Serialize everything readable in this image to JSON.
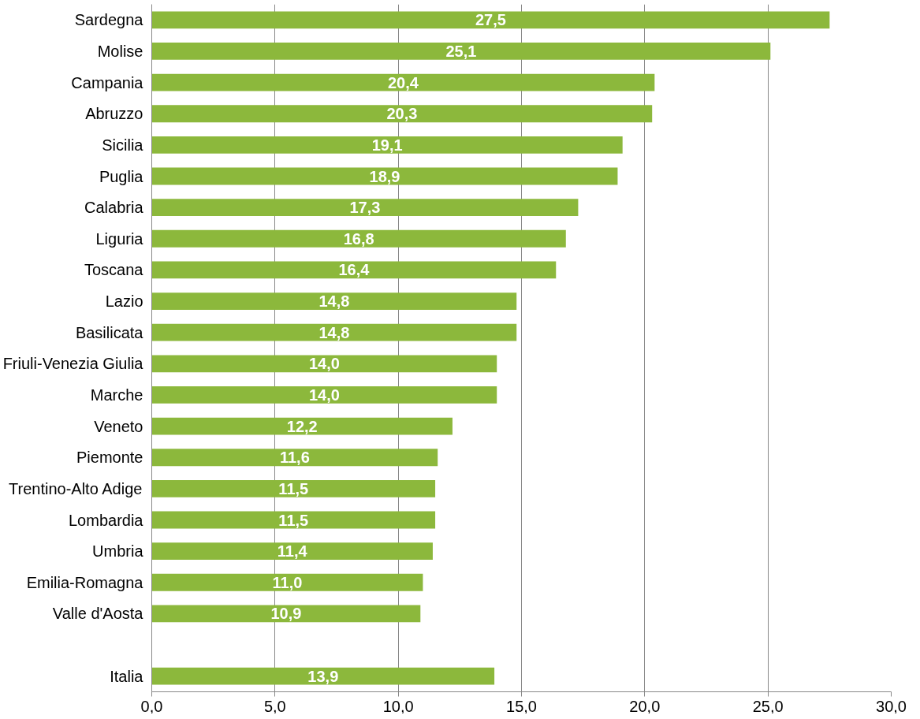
{
  "chart_data": {
    "type": "bar",
    "orientation": "horizontal",
    "categories": [
      "Sardegna",
      "Molise",
      "Campania",
      "Abruzzo",
      "Sicilia",
      "Puglia",
      "Calabria",
      "Liguria",
      "Toscana",
      "Lazio",
      "Basilicata",
      "Friuli-Venezia Giulia",
      "Marche",
      "Veneto",
      "Piemonte",
      "Trentino-Alto Adige",
      "Lombardia",
      "Umbria",
      "Emilia-Romagna",
      "Valle d'Aosta",
      null,
      "Italia"
    ],
    "values": [
      27.5,
      25.1,
      20.4,
      20.3,
      19.1,
      18.9,
      17.3,
      16.8,
      16.4,
      14.8,
      14.8,
      14.0,
      14.0,
      12.2,
      11.6,
      11.5,
      11.5,
      11.4,
      11.0,
      10.9,
      null,
      13.9
    ],
    "value_labels": [
      "27,5",
      "25,1",
      "20,4",
      "20,3",
      "19,1",
      "18,9",
      "17,3",
      "16,8",
      "16,4",
      "14,8",
      "14,8",
      "14,0",
      "14,0",
      "12,2",
      "11,6",
      "11,5",
      "11,5",
      "11,4",
      "11,0",
      "10,9",
      null,
      "13,9"
    ],
    "color": "#8cb83c",
    "xlim": [
      0,
      30
    ],
    "xticks": [
      {
        "value": 0,
        "label": "0,0"
      },
      {
        "value": 5,
        "label": "5,0"
      },
      {
        "value": 10,
        "label": "10,0"
      },
      {
        "value": 15,
        "label": "15,0"
      },
      {
        "value": 20,
        "label": "20,0"
      },
      {
        "value": 25,
        "label": "25,0"
      },
      {
        "value": 30,
        "label": "30,0"
      }
    ],
    "grid": "x"
  }
}
